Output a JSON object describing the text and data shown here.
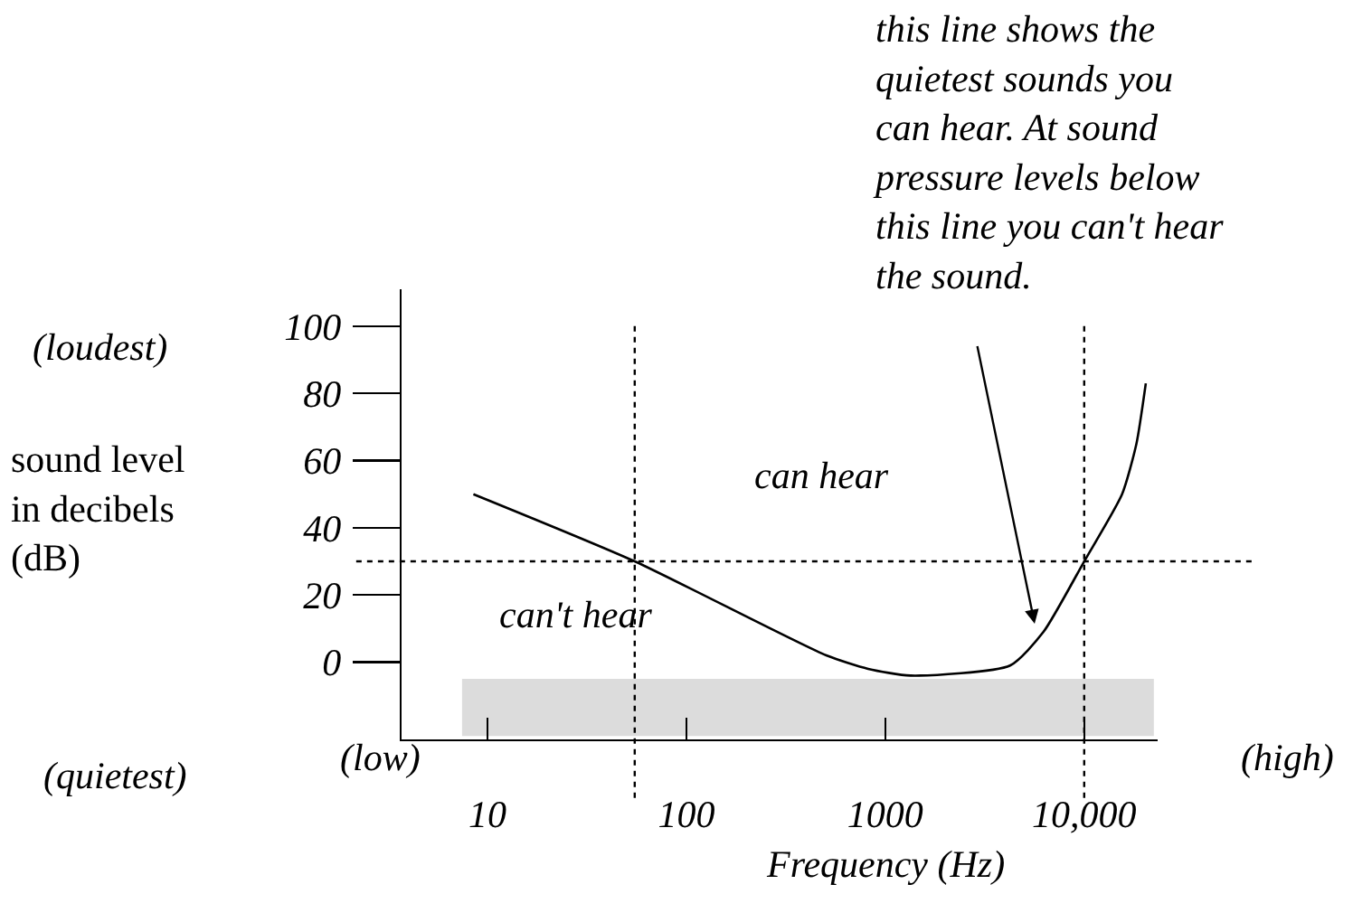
{
  "chart_data": {
    "type": "line",
    "xlabel": "Frequency (Hz)",
    "ylabel": "sound level in decibels (dB)",
    "x": [
      8.5,
      55,
      505,
      820,
      1340,
      4240,
      6240,
      10000,
      15500,
      18300,
      20400
    ],
    "series": [
      {
        "color": "#000000",
        "values": [
          50,
          30,
          2,
          -2,
          -4,
          -1,
          9,
          30,
          50,
          65,
          83
        ]
      }
    ],
    "log": "x",
    "xlim": [
      3.7,
      23400
    ],
    "xticks": [
      10,
      100,
      1000,
      {
        "value": 10000,
        "label": "10,000"
      }
    ],
    "ylim": [
      -23,
      111
    ],
    "yticks": [
      0,
      20,
      40,
      60,
      80,
      100
    ],
    "grid": false,
    "marker": "none",
    "line_style": "solid",
    "ref_lines": [
      {
        "axis": "x",
        "value": 55,
        "line_style": "dotted"
      },
      {
        "axis": "x",
        "value": 10000,
        "line_style": "dotted"
      },
      {
        "axis": "y",
        "value": 30,
        "line_style": "dotted"
      }
    ],
    "bands": [
      {
        "axis": "y",
        "from": -22,
        "to": -5,
        "color": "#dcdcdc"
      }
    ],
    "annotations": [
      "(loudest)",
      "(quietest)",
      "(low)",
      "(high)",
      "can hear",
      "can't hear",
      "this line shows the\nquietest sounds you\ncan hear. At sound\npressure levels below\nthis line you can't hear\nthe sound."
    ]
  }
}
